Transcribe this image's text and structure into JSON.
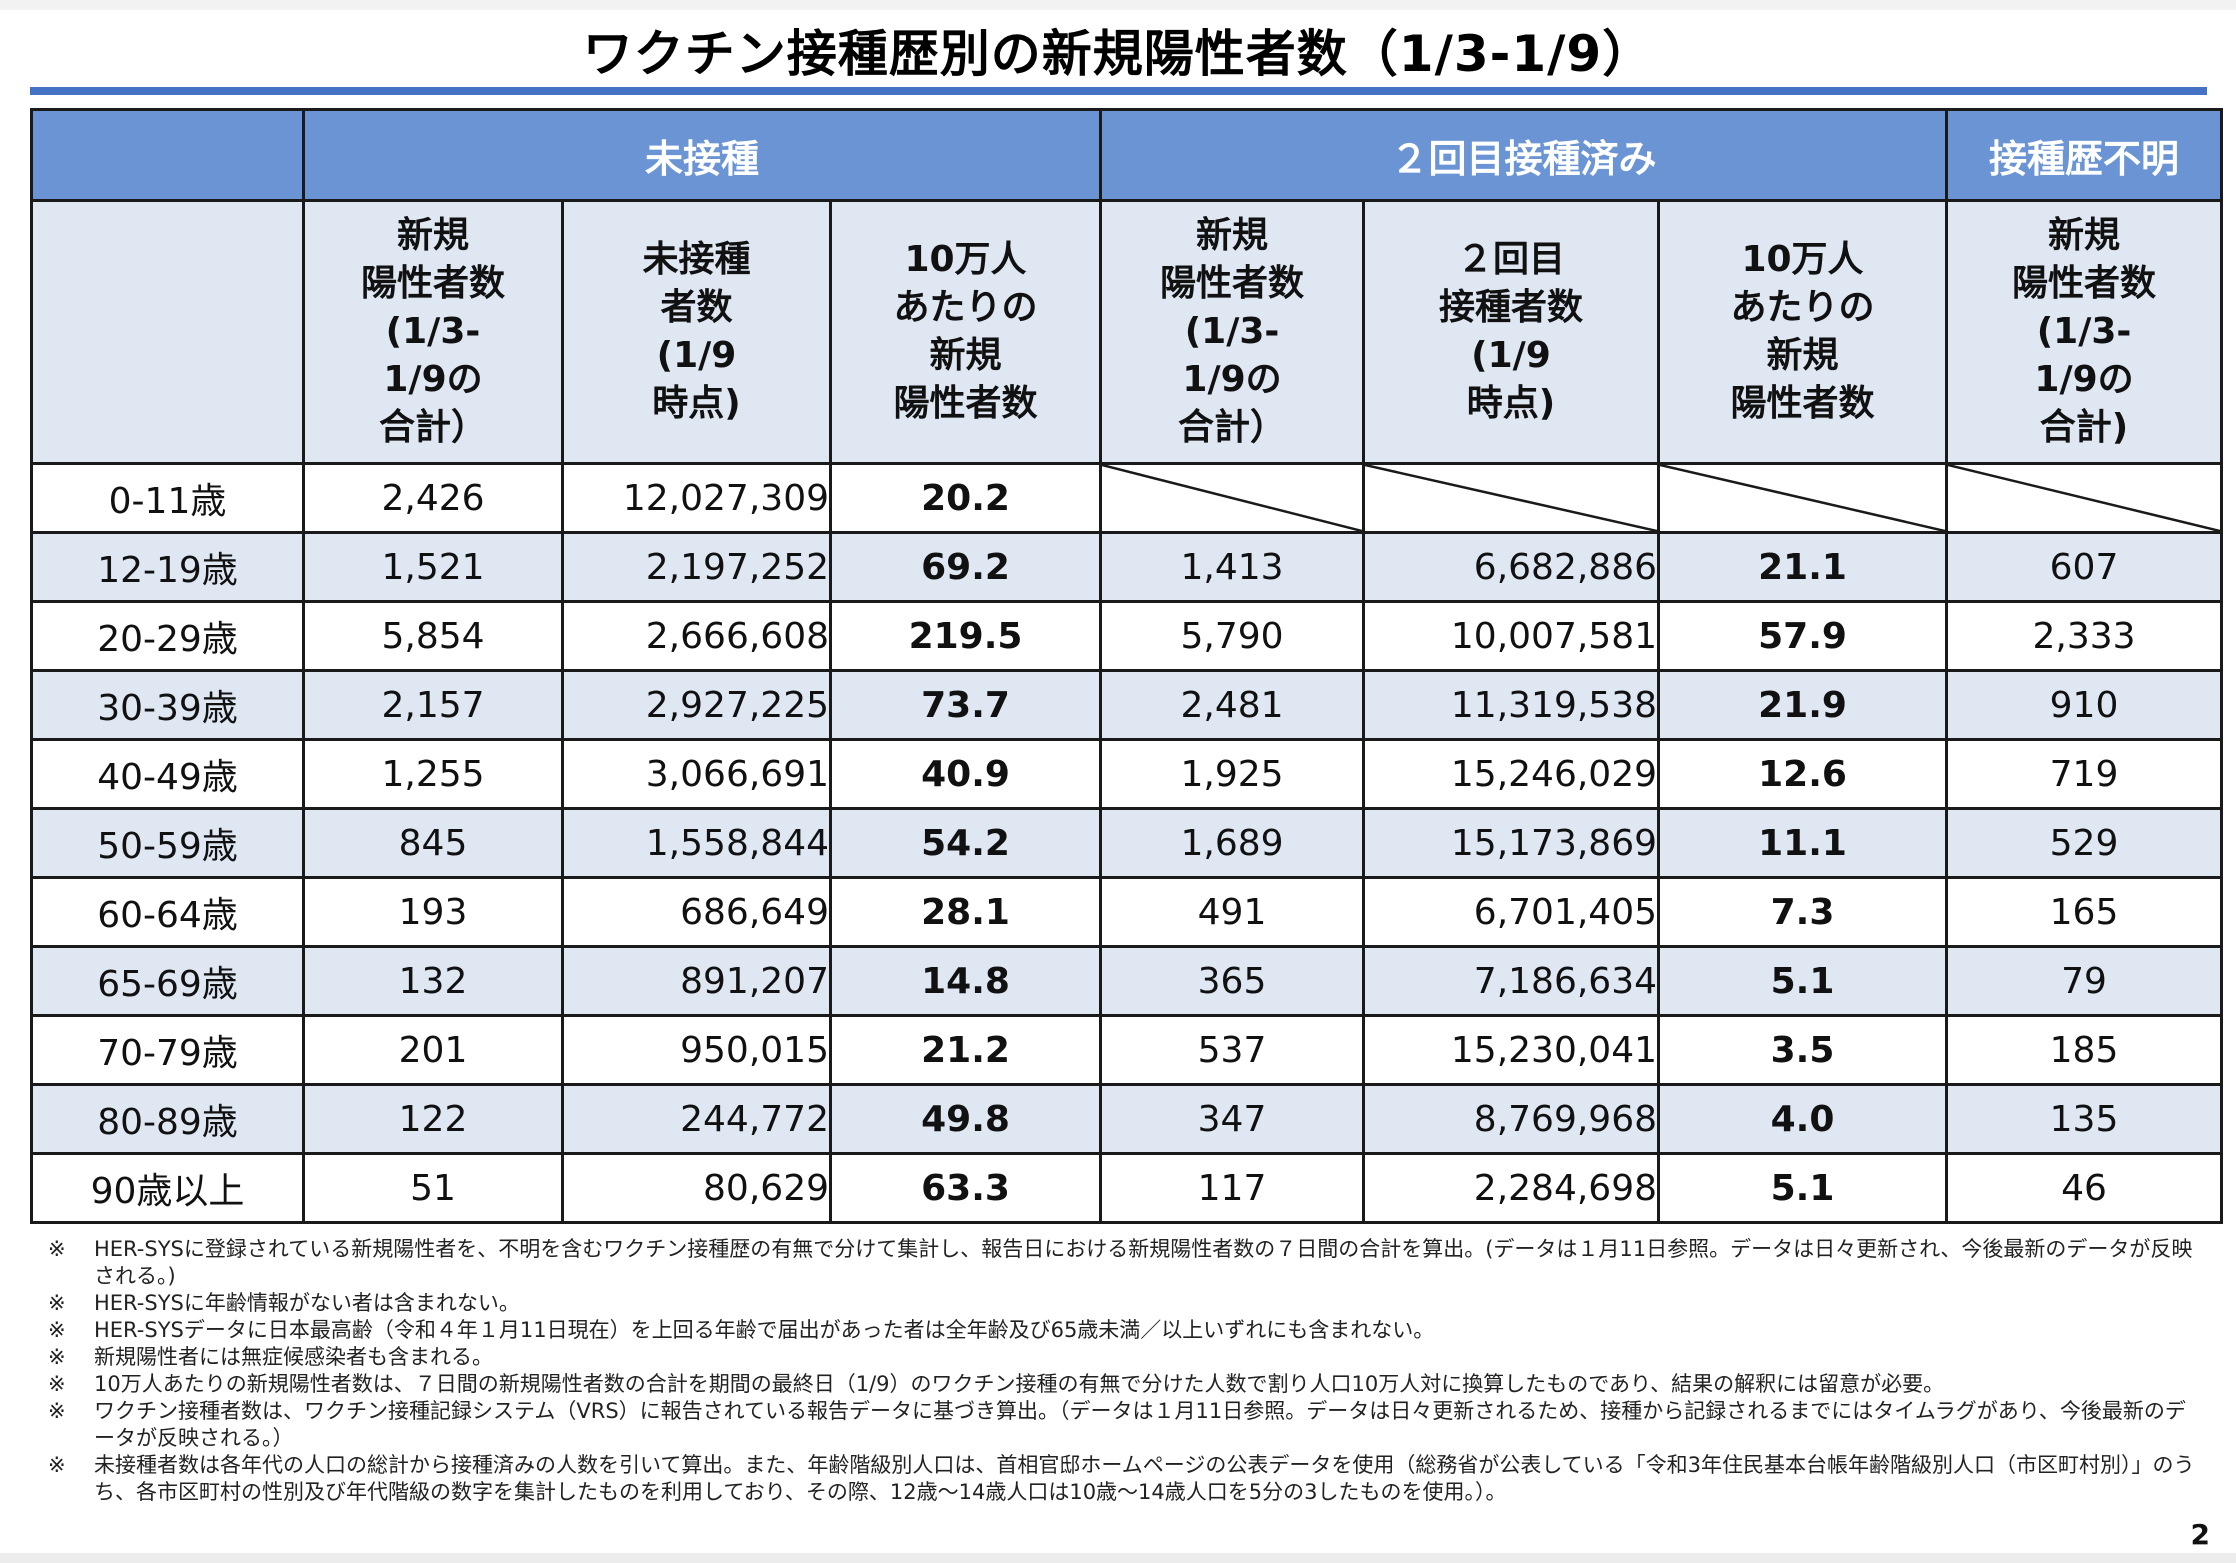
{
  "title": "ワクチン接種歴別の新規陽性者数（1/3-1/9）",
  "groups": {
    "unvaccinated": "未接種",
    "second_dose": "２回目接種済み",
    "unknown": "接種歴不明"
  },
  "columns": {
    "unv_new": "新規\n陽性者数\n(1/3-\n1/9の\n合計）",
    "unv_pop": "未接種\n者数\n(1/9\n時点)",
    "unv_rate": "10万人\nあたりの\n新規\n陽性者数",
    "vax_new": "新規\n陽性者数\n(1/3-\n1/9の\n合計）",
    "vax_pop": "２回目\n接種者数\n(1/9\n時点)",
    "vax_rate": "10万人\nあたりの\n新規\n陽性者数",
    "unk_new": "新規\n陽性者数\n(1/3-\n1/9の\n合計)"
  },
  "rows": [
    {
      "age": "0-11歳",
      "unv_new": "2,426",
      "unv_pop": "12,027,309",
      "unv_rate": "20.2",
      "vax_new": "",
      "vax_pop": "",
      "vax_rate": "",
      "unk_new": ""
    },
    {
      "age": "12-19歳",
      "unv_new": "1,521",
      "unv_pop": "2,197,252",
      "unv_rate": "69.2",
      "vax_new": "1,413",
      "vax_pop": "6,682,886",
      "vax_rate": "21.1",
      "unk_new": "607"
    },
    {
      "age": "20-29歳",
      "unv_new": "5,854",
      "unv_pop": "2,666,608",
      "unv_rate": "219.5",
      "vax_new": "5,790",
      "vax_pop": "10,007,581",
      "vax_rate": "57.9",
      "unk_new": "2,333"
    },
    {
      "age": "30-39歳",
      "unv_new": "2,157",
      "unv_pop": "2,927,225",
      "unv_rate": "73.7",
      "vax_new": "2,481",
      "vax_pop": "11,319,538",
      "vax_rate": "21.9",
      "unk_new": "910"
    },
    {
      "age": "40-49歳",
      "unv_new": "1,255",
      "unv_pop": "3,066,691",
      "unv_rate": "40.9",
      "vax_new": "1,925",
      "vax_pop": "15,246,029",
      "vax_rate": "12.6",
      "unk_new": "719"
    },
    {
      "age": "50-59歳",
      "unv_new": "845",
      "unv_pop": "1,558,844",
      "unv_rate": "54.2",
      "vax_new": "1,689",
      "vax_pop": "15,173,869",
      "vax_rate": "11.1",
      "unk_new": "529"
    },
    {
      "age": "60-64歳",
      "unv_new": "193",
      "unv_pop": "686,649",
      "unv_rate": "28.1",
      "vax_new": "491",
      "vax_pop": "6,701,405",
      "vax_rate": "7.3",
      "unk_new": "165"
    },
    {
      "age": "65-69歳",
      "unv_new": "132",
      "unv_pop": "891,207",
      "unv_rate": "14.8",
      "vax_new": "365",
      "vax_pop": "7,186,634",
      "vax_rate": "5.1",
      "unk_new": "79"
    },
    {
      "age": "70-79歳",
      "unv_new": "201",
      "unv_pop": "950,015",
      "unv_rate": "21.2",
      "vax_new": "537",
      "vax_pop": "15,230,041",
      "vax_rate": "3.5",
      "unk_new": "185"
    },
    {
      "age": "80-89歳",
      "unv_new": "122",
      "unv_pop": "244,772",
      "unv_rate": "49.8",
      "vax_new": "347",
      "vax_pop": "8,769,968",
      "vax_rate": "4.0",
      "unk_new": "135"
    },
    {
      "age": "90歳以上",
      "unv_new": "51",
      "unv_pop": "80,629",
      "unv_rate": "63.3",
      "vax_new": "117",
      "vax_pop": "2,284,698",
      "vax_rate": "5.1",
      "unk_new": "46"
    }
  ],
  "note_mark": "※",
  "notes": [
    "HER-SYSに登録されている新規陽性者を、不明を含むワクチン接種歴の有無で分けて集計し、報告日における新規陽性者数の７日間の合計を算出。(データは１月11日参照。データは日々更新され、今後最新のデータが反映される。)",
    "HER-SYSに年齢情報がない者は含まれない。",
    "HER-SYSデータに日本最高齢（令和４年１月11日現在）を上回る年齢で届出があった者は全年齢及び65歳未満／以上いずれにも含まれない。",
    "新規陽性者には無症候感染者も含まれる。",
    "10万人あたりの新規陽性者数は、７日間の新規陽性者数の合計を期間の最終日（1/9）のワクチン接種の有無で分けた人数で割り人口10万人対に換算したものであり、結果の解釈には留意が必要。",
    "ワクチン接種者数は、ワクチン接種記録システム（VRS）に報告されている報告データに基づき算出。（データは１月11日参照。データは日々更新されるため、接種から記録されるまでにはタイムラグがあり、今後最新のデータが反映される。）",
    "未接種者数は各年代の人口の総計から接種済みの人数を引いて算出。また、年齢階級別人口は、首相官邸ホームページの公表データを使用（総務省が公表している「令和3年住民基本台帳年齢階級別人口（市区町村別）」のうち、各市区町村の性別及び年代階級の数字を集計したものを利用しており、その際、12歳～14歳人口は10歳～14歳人口を5分の3したものを使用。）。"
  ],
  "page_number": "2",
  "colors": {
    "accent": "#4472c4",
    "header": "#6a94d4",
    "shade": "#dfe7f3"
  }
}
